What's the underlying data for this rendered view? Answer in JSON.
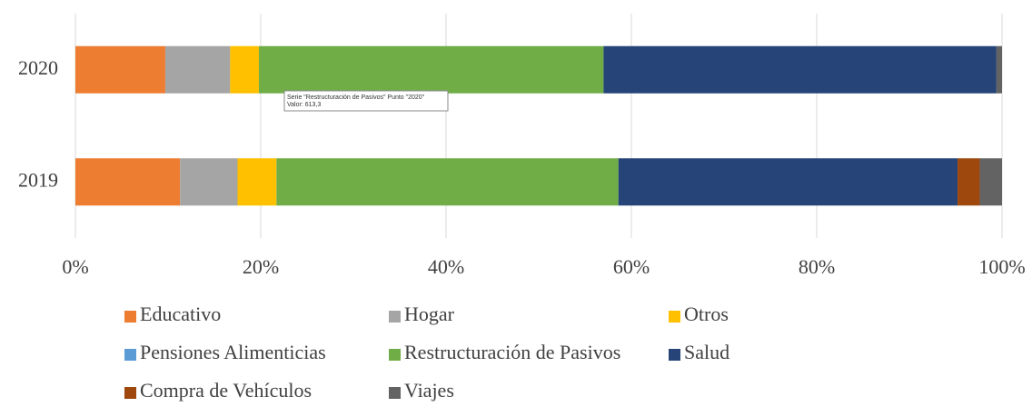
{
  "chart_data": {
    "type": "stacked-bar-horizontal",
    "categories": [
      "2020",
      "2019"
    ],
    "series": [
      {
        "name": "Educativo",
        "color": "#ed7d31",
        "values": [
          9.7,
          11.3
        ]
      },
      {
        "name": "Hogar",
        "color": "#a5a5a5",
        "values": [
          7.0,
          6.2
        ]
      },
      {
        "name": "Otros",
        "color": "#ffc000",
        "values": [
          3.1,
          4.2
        ]
      },
      {
        "name": "Pensiones Alimenticias",
        "color": "#5b9bd5",
        "values": [
          0,
          0
        ]
      },
      {
        "name": "Restructuración de Pasivos",
        "color": "#70ad47",
        "values": [
          37.2,
          36.9
        ]
      },
      {
        "name": "Salud",
        "color": "#264478",
        "values": [
          42.4,
          36.6
        ]
      },
      {
        "name": "Compra de Vehículos",
        "color": "#9e480e",
        "values": [
          0,
          2.4
        ]
      },
      {
        "name": "Viajes",
        "color": "#636363",
        "values": [
          0.6,
          2.4
        ]
      }
    ],
    "xlim": [
      0,
      100
    ],
    "xticks": [
      {
        "value": 0,
        "label": "0%"
      },
      {
        "value": 20,
        "label": "20%"
      },
      {
        "value": 40,
        "label": "40%"
      },
      {
        "value": 60,
        "label": "60%"
      },
      {
        "value": 80,
        "label": "80%"
      },
      {
        "value": 100,
        "label": "100%"
      }
    ],
    "grid": true,
    "tooltip": {
      "title": "Serie \"Restructuración de Pasivos\" Punto \"2020\"",
      "value": "Valor: 613,3"
    }
  }
}
